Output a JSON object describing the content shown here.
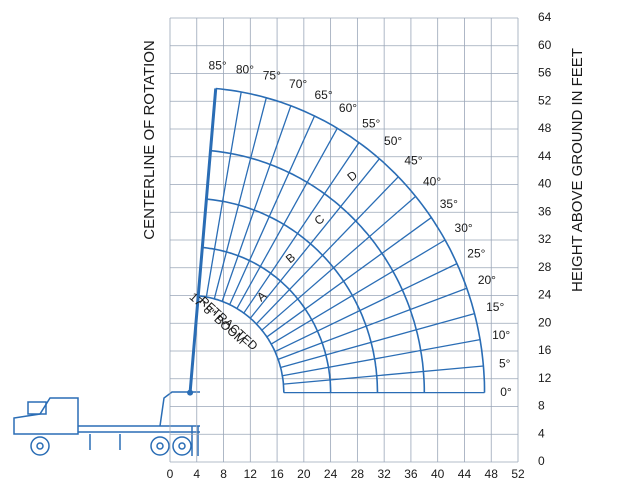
{
  "chart_data": {
    "type": "range",
    "xlim": [
      0,
      52
    ],
    "xticks": [
      0,
      4,
      8,
      12,
      16,
      20,
      24,
      28,
      32,
      36,
      40,
      44,
      48,
      52
    ],
    "ylim": [
      0,
      64
    ],
    "yticks": [
      0,
      4,
      8,
      12,
      16,
      20,
      24,
      28,
      32,
      36,
      40,
      44,
      48,
      52,
      56,
      60,
      64
    ],
    "y_label": "HEIGHT ABOVE GROUND IN FEET",
    "centerline_label": "CENTERLINE OF ROTATION",
    "boom_label": [
      "17' 8\" BOOM",
      "RETRACTED"
    ],
    "boom_pivot": {
      "x": 3,
      "y": 10
    },
    "arc_radii": [
      14,
      21,
      28,
      35,
      44
    ],
    "zones": [
      "A",
      "B",
      "C",
      "D"
    ],
    "angles": [
      {
        "value": 0,
        "label": "0°"
      },
      {
        "value": 5,
        "label": "5°"
      },
      {
        "value": 10,
        "label": "10°"
      },
      {
        "value": 15,
        "label": "15°"
      },
      {
        "value": 20,
        "label": "20°"
      },
      {
        "value": 25,
        "label": "25°"
      },
      {
        "value": 30,
        "label": "30°"
      },
      {
        "value": 35,
        "label": "35°"
      },
      {
        "value": 40,
        "label": "40°"
      },
      {
        "value": 45,
        "label": "45°"
      },
      {
        "value": 50,
        "label": "50°"
      },
      {
        "value": 55,
        "label": "55°"
      },
      {
        "value": 60,
        "label": "60°"
      },
      {
        "value": 65,
        "label": "65°"
      },
      {
        "value": 70,
        "label": "70°"
      },
      {
        "value": 75,
        "label": "75°"
      },
      {
        "value": 80,
        "label": "80°"
      },
      {
        "value": 85,
        "label": "85°"
      }
    ],
    "color": "#2a6db5",
    "grid": true
  }
}
